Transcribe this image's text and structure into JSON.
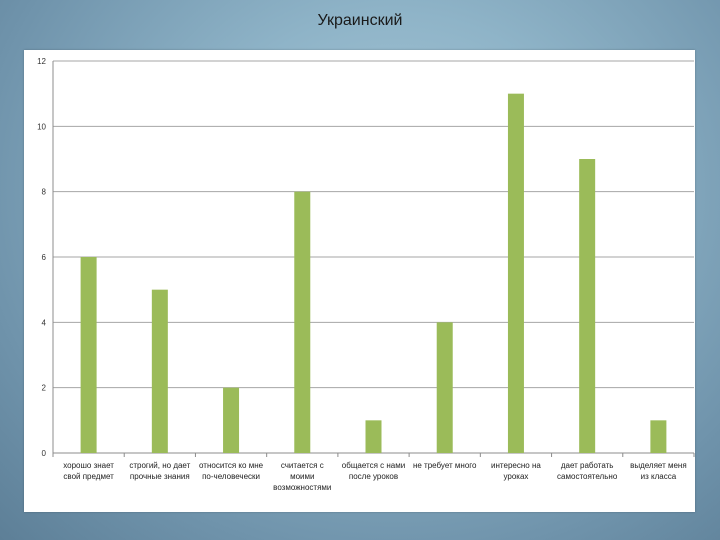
{
  "slide": {
    "title": "Украинский"
  },
  "chart_data": {
    "type": "bar",
    "title": "Украинский",
    "xlabel": "",
    "ylabel": "",
    "ylim": [
      0,
      12
    ],
    "yticks": [
      0,
      2,
      4,
      6,
      8,
      10,
      12
    ],
    "grid": true,
    "legend": "none",
    "bar_color": "#9bbb59",
    "categories": [
      [
        "хорошо знает",
        "свой предмет"
      ],
      [
        "строгий, но дает",
        "прочные знания"
      ],
      [
        "относится ко мне",
        "по-человечески"
      ],
      [
        "считается с",
        "моими",
        "возможностями"
      ],
      [
        "общается с нами",
        "после уроков"
      ],
      [
        "не требует много"
      ],
      [
        "интересно на",
        "уроках"
      ],
      [
        "дает работать",
        "самостоятельно"
      ],
      [
        "выделяет меня",
        "из класса"
      ]
    ],
    "values": [
      6,
      5,
      2,
      8,
      1,
      4,
      11,
      9,
      1
    ]
  }
}
